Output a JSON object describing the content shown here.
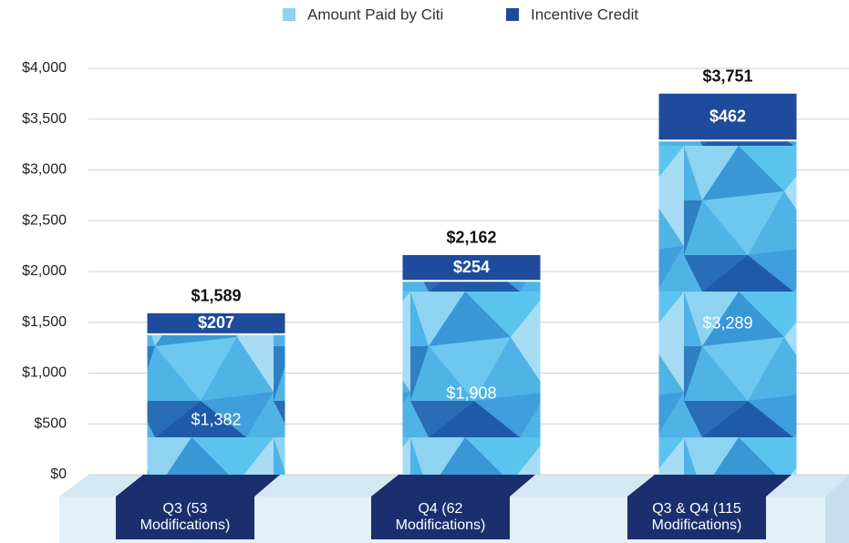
{
  "chart_data": {
    "type": "stacked_bar",
    "categories": [
      "Q3 (53 Modifications)",
      "Q4 (62 Modifications)",
      "Q3 & Q4 (115 Modifications)"
    ],
    "series": [
      {
        "name": "Amount Paid by Citi",
        "color": "#4fb3e6",
        "values": [
          1382,
          1908,
          3289
        ],
        "value_labels": [
          "$1,382",
          "$1,908",
          "$3,289"
        ]
      },
      {
        "name": "Incentive Credit",
        "color": "#1e4b9c",
        "values": [
          207,
          254,
          462
        ],
        "value_labels": [
          "$207",
          "$254",
          "$462"
        ]
      }
    ],
    "totals": [
      1589,
      2162,
      3751
    ],
    "totals_labels": [
      "$1,589",
      "$2,162",
      "$3,751"
    ],
    "ylim": [
      0,
      4000
    ],
    "yticks": [
      {
        "value": 0,
        "label": "$0"
      },
      {
        "value": 500,
        "label": "$500"
      },
      {
        "value": 1000,
        "label": "$1,000"
      },
      {
        "value": 1500,
        "label": "$1,500"
      },
      {
        "value": 2000,
        "label": "$2,000"
      },
      {
        "value": 2500,
        "label": "$2,500"
      },
      {
        "value": 3000,
        "label": "$3,000"
      },
      {
        "value": 3500,
        "label": "$3,500"
      },
      {
        "value": 4000,
        "label": "$4,000"
      }
    ],
    "grid": true,
    "legend": "top"
  }
}
